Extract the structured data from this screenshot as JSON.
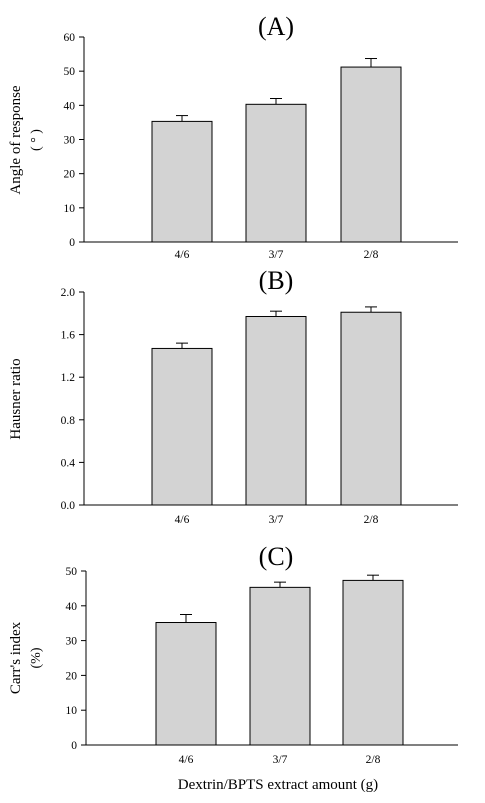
{
  "figure": {
    "xlabel": "Dextrin/BPTS extract amount (g)"
  },
  "chart_data": [
    {
      "type": "bar",
      "title": "(A)",
      "ylabel": "Angle of response",
      "ylabel_unit": "( ° )",
      "categories": [
        "4/6",
        "3/7",
        "2/8"
      ],
      "values": [
        35.3,
        40.3,
        51.2
      ],
      "errors": [
        1.7,
        1.7,
        2.5
      ],
      "ylim": [
        0,
        60
      ],
      "yticks": [
        0,
        10,
        20,
        30,
        40,
        50,
        60
      ],
      "ytick_labels": [
        "0",
        "10",
        "20",
        "30",
        "40",
        "50",
        "60"
      ],
      "bar_color": "#d3d3d3"
    },
    {
      "type": "bar",
      "title": "(B)",
      "ylabel": "Hausner ratio",
      "ylabel_unit": "",
      "categories": [
        "4/6",
        "3/7",
        "2/8"
      ],
      "values": [
        1.47,
        1.77,
        1.81
      ],
      "errors": [
        0.05,
        0.05,
        0.05
      ],
      "ylim": [
        0,
        2.0
      ],
      "yticks": [
        0,
        0.4,
        0.8,
        1.2,
        1.6,
        2.0
      ],
      "ytick_labels": [
        "0.0",
        "0.4",
        "0.8",
        "1.2",
        "1.6",
        "2.0"
      ],
      "bar_color": "#d3d3d3"
    },
    {
      "type": "bar",
      "title": "(C)",
      "ylabel": "Carr's index",
      "ylabel_unit": "(%)",
      "categories": [
        "4/6",
        "3/7",
        "2/8"
      ],
      "values": [
        35.2,
        45.3,
        47.3
      ],
      "errors": [
        2.3,
        1.5,
        1.5
      ],
      "ylim": [
        0,
        50
      ],
      "yticks": [
        0,
        10,
        20,
        30,
        40,
        50
      ],
      "ytick_labels": [
        "0",
        "10",
        "20",
        "30",
        "40",
        "50"
      ],
      "bar_color": "#d3d3d3"
    }
  ]
}
